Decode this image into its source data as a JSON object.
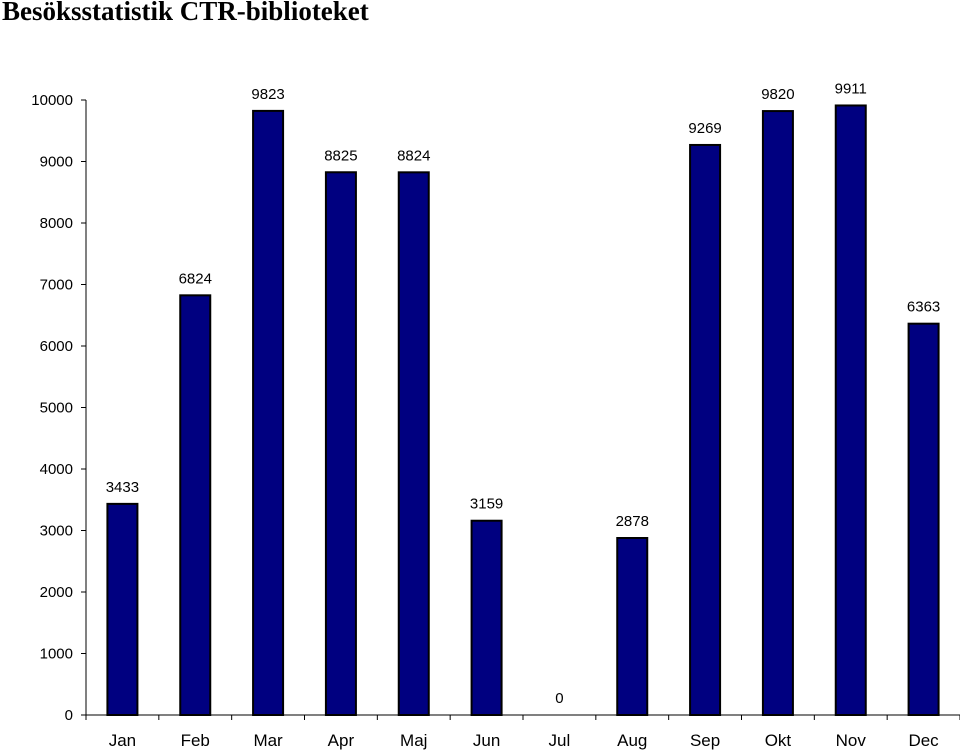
{
  "title": "Besöksstatistik CTR-biblioteket",
  "chart_data": {
    "type": "bar",
    "title": "Besöksstatistik CTR-biblioteket",
    "categories": [
      "Jan",
      "Feb",
      "Mar",
      "Apr",
      "Maj",
      "Jun",
      "Jul",
      "Aug",
      "Sep",
      "Okt",
      "Nov",
      "Dec"
    ],
    "values": [
      3433,
      6824,
      9823,
      8825,
      8824,
      3159,
      0,
      2878,
      9269,
      9820,
      9911,
      6363
    ],
    "data_labels": [
      "3433",
      "6824",
      "9823",
      "8825",
      "8824",
      "3159",
      "0",
      "2878",
      "9269",
      "9820",
      "9911",
      "6363"
    ],
    "y_ticks": [
      "0",
      "1000",
      "2000",
      "3000",
      "4000",
      "5000",
      "6000",
      "7000",
      "8000",
      "9000",
      "10000"
    ],
    "ylim": [
      0,
      10000
    ],
    "xlabel": "",
    "ylabel": "",
    "grid": false,
    "legend": "none",
    "bar_color": "#000080",
    "bar_outline": "#000000"
  }
}
